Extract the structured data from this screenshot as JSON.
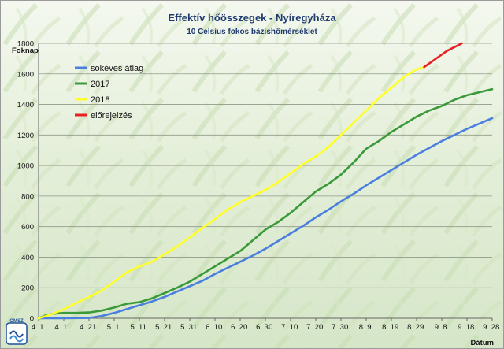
{
  "chart_data": {
    "type": "line",
    "title": "Effektív hőösszegek - Nyíregyháza",
    "subtitle": "10 Celsius fokos bázishőmérséklet",
    "xlabel": "Dátum",
    "ylabel": "Foknap",
    "ylim": [
      0,
      1800
    ],
    "yticks": [
      0,
      200,
      400,
      600,
      800,
      1000,
      1200,
      1400,
      1600,
      1800
    ],
    "xlim": [
      0,
      180
    ],
    "xticks": [
      {
        "label": "4. 1.",
        "day": 0
      },
      {
        "label": "4. 11.",
        "day": 10
      },
      {
        "label": "4. 21.",
        "day": 20
      },
      {
        "label": "5. 1.",
        "day": 30
      },
      {
        "label": "5. 11.",
        "day": 40
      },
      {
        "label": "5. 21.",
        "day": 50
      },
      {
        "label": "5. 31.",
        "day": 60
      },
      {
        "label": "6. 10.",
        "day": 70
      },
      {
        "label": "6. 20.",
        "day": 80
      },
      {
        "label": "6. 30.",
        "day": 90
      },
      {
        "label": "7. 10.",
        "day": 100
      },
      {
        "label": "7. 20.",
        "day": 110
      },
      {
        "label": "7. 30.",
        "day": 120
      },
      {
        "label": "8. 9.",
        "day": 130
      },
      {
        "label": "8. 19.",
        "day": 140
      },
      {
        "label": "8. 29.",
        "day": 150
      },
      {
        "label": "9. 8.",
        "day": 160
      },
      {
        "label": "9. 18.",
        "day": 170
      },
      {
        "label": "9. 28.",
        "day": 180
      }
    ],
    "grid": true,
    "legend_position": "top-left",
    "series": [
      {
        "name": "sokéves átlag",
        "color": "#4a7fe0",
        "x": [
          0,
          10,
          20,
          25,
          30,
          35,
          40,
          45,
          50,
          55,
          60,
          65,
          70,
          75,
          80,
          85,
          90,
          95,
          100,
          105,
          110,
          115,
          120,
          125,
          130,
          135,
          140,
          145,
          150,
          155,
          160,
          165,
          170,
          175,
          180
        ],
        "y": [
          0,
          0,
          2,
          15,
          35,
          60,
          85,
          110,
          140,
          175,
          210,
          245,
          290,
          330,
          370,
          410,
          455,
          505,
          555,
          605,
          660,
          710,
          765,
          815,
          870,
          920,
          970,
          1020,
          1070,
          1115,
          1160,
          1200,
          1240,
          1275,
          1310
        ]
      },
      {
        "name": "2017",
        "color": "#3a9a3a",
        "x": [
          0,
          3,
          6,
          10,
          15,
          20,
          25,
          30,
          35,
          40,
          45,
          50,
          55,
          60,
          65,
          70,
          75,
          80,
          85,
          90,
          95,
          100,
          105,
          110,
          115,
          120,
          125,
          130,
          135,
          140,
          145,
          150,
          155,
          160,
          165,
          170,
          175,
          180
        ],
        "y": [
          0,
          20,
          30,
          35,
          35,
          38,
          50,
          70,
          95,
          105,
          130,
          165,
          200,
          240,
          290,
          340,
          390,
          440,
          510,
          580,
          630,
          690,
          760,
          830,
          880,
          940,
          1020,
          1110,
          1160,
          1220,
          1270,
          1320,
          1360,
          1390,
          1430,
          1460,
          1480,
          1500
        ]
      },
      {
        "name": "2018",
        "color": "#ffff2a",
        "x": [
          0,
          5,
          10,
          15,
          20,
          25,
          30,
          35,
          40,
          45,
          50,
          55,
          60,
          65,
          70,
          75,
          80,
          85,
          90,
          95,
          100,
          105,
          110,
          115,
          120,
          125,
          130,
          135,
          140,
          145,
          150,
          153
        ],
        "y": [
          0,
          25,
          60,
          100,
          140,
          180,
          240,
          300,
          340,
          370,
          420,
          470,
          530,
          590,
          650,
          710,
          760,
          800,
          840,
          890,
          950,
          1010,
          1060,
          1120,
          1200,
          1280,
          1360,
          1440,
          1510,
          1580,
          1630,
          1645
        ]
      },
      {
        "name": "előrejelzés",
        "color": "#e62222",
        "x": [
          153,
          156,
          159,
          162,
          165,
          168
        ],
        "y": [
          1645,
          1680,
          1715,
          1750,
          1775,
          1800
        ]
      }
    ]
  },
  "logo": {
    "text": "OMSZ"
  }
}
